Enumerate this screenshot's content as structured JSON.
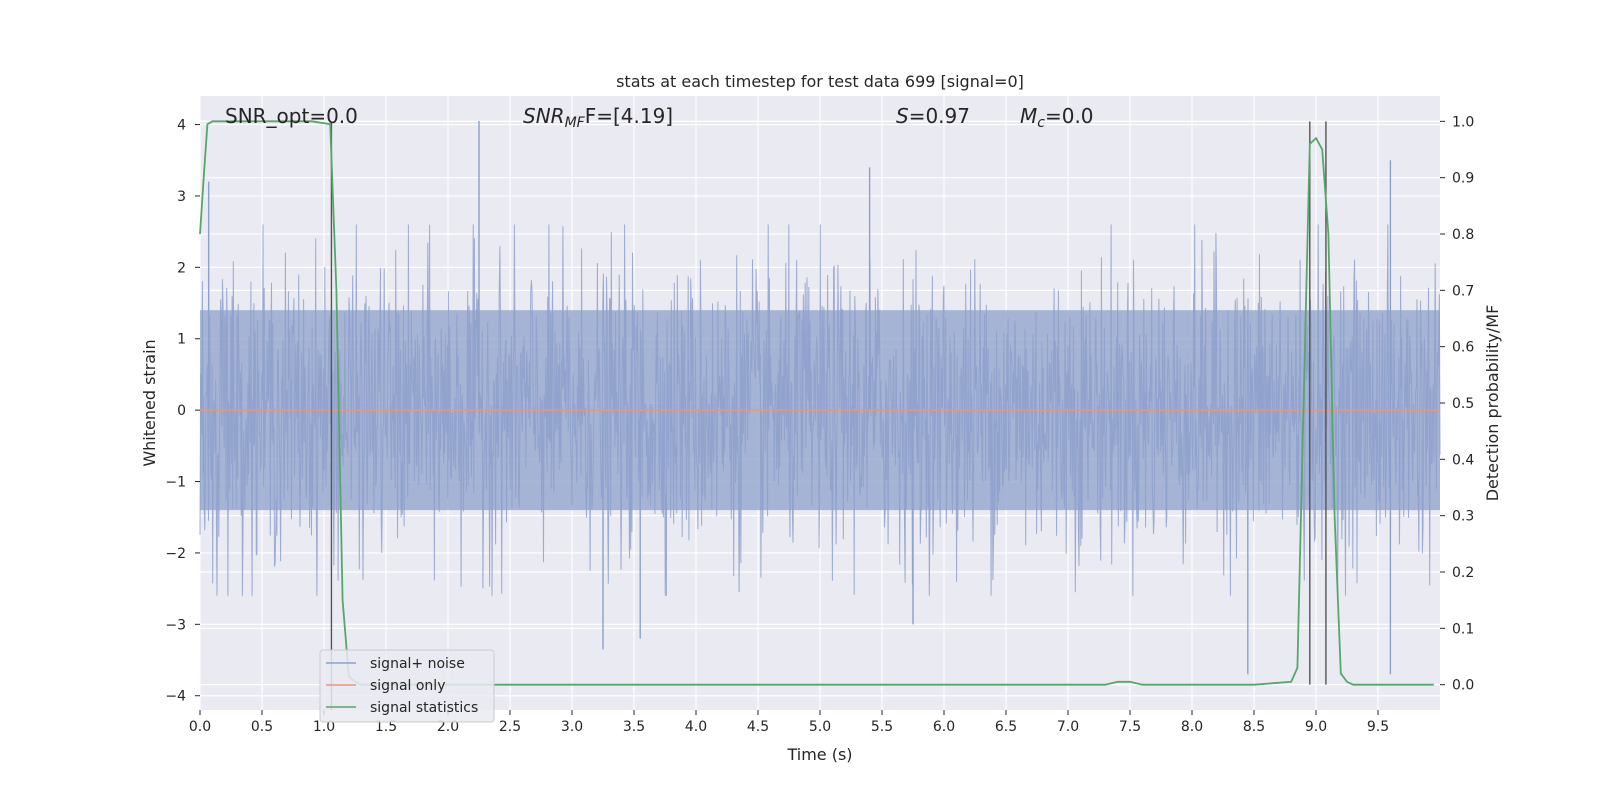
{
  "chart_data": {
    "type": "line",
    "title": "stats at each timestep for test data 699 [signal=0]",
    "xlabel": "Time (s)",
    "ylabel": "Whitened strain",
    "ylabel_right": "Detection probability/MF",
    "xlim": [
      0.0,
      10.0
    ],
    "ylim": [
      -4.2,
      4.4
    ],
    "ylim_right": [
      -0.045,
      1.045
    ],
    "x_ticks": [
      "0.0",
      "0.5",
      "1.0",
      "1.5",
      "2.0",
      "2.5",
      "3.0",
      "3.5",
      "4.0",
      "4.5",
      "5.0",
      "5.5",
      "6.0",
      "6.5",
      "7.0",
      "7.5",
      "8.0",
      "8.5",
      "9.0",
      "9.5"
    ],
    "y_ticks": [
      "4",
      "3",
      "2",
      "1",
      "0",
      "−1",
      "−2",
      "−3",
      "−4"
    ],
    "y_ticks_right": [
      "1.0",
      "0.9",
      "0.8",
      "0.7",
      "0.6",
      "0.5",
      "0.4",
      "0.3",
      "0.2",
      "0.1",
      "0.0"
    ],
    "grid": true,
    "legend_position": "lower-left",
    "annotations": {
      "snr_opt": "SNR_opt=0.0",
      "snr_mf_base": "SNR",
      "snr_mf_sub": "MF",
      "snr_mf_tail": "F=[4.19]",
      "s_sym": "S",
      "s_tail": "=0.97",
      "mc_base": "M",
      "mc_sub": "c",
      "mc_tail": "=0.0"
    },
    "series": [
      {
        "name": "signal+ noise",
        "color": "#8da0cb",
        "axis": "left",
        "description": "whitened noise, ~unit variance, bounded roughly by ±1.4 envelope with spikes to ±3.5",
        "envelope_upper": 1.4,
        "envelope_lower": -1.4,
        "spikes": [
          {
            "x": 0.07,
            "y": 3.2
          },
          {
            "x": 2.25,
            "y": 4.05
          },
          {
            "x": 5.4,
            "y": 3.4
          },
          {
            "x": 9.6,
            "y": 3.5
          },
          {
            "x": 8.45,
            "y": -3.7
          },
          {
            "x": 9.6,
            "y": -3.7
          },
          {
            "x": 3.25,
            "y": -3.35
          },
          {
            "x": 3.55,
            "y": -3.2
          },
          {
            "x": 5.75,
            "y": -3.0
          }
        ]
      },
      {
        "name": "signal only",
        "color": "#e8967a",
        "axis": "left",
        "x": [
          0.0,
          10.0
        ],
        "y": [
          0.0,
          0.0
        ]
      },
      {
        "name": "signal statistics",
        "color": "#55a868",
        "axis": "right",
        "x": [
          0.0,
          0.03,
          0.06,
          0.1,
          0.15,
          0.3,
          0.6,
          0.9,
          1.05,
          1.1,
          1.15,
          1.2,
          1.25,
          1.3,
          1.5,
          2.0,
          3.0,
          4.0,
          5.0,
          6.0,
          7.0,
          7.3,
          7.4,
          7.5,
          7.6,
          8.0,
          8.5,
          8.8,
          8.85,
          8.9,
          8.95,
          9.0,
          9.05,
          9.1,
          9.15,
          9.2,
          9.25,
          9.3,
          9.4,
          9.5,
          9.95
        ],
        "y": [
          0.8,
          0.9,
          0.995,
          1.0,
          1.0,
          1.0,
          1.0,
          1.0,
          0.995,
          0.7,
          0.15,
          0.015,
          0.005,
          0.0,
          0.0,
          0.0,
          0.0,
          0.0,
          0.0,
          0.0,
          0.0,
          0.0,
          0.005,
          0.005,
          0.0,
          0.0,
          0.0,
          0.005,
          0.03,
          0.5,
          0.96,
          0.97,
          0.95,
          0.8,
          0.3,
          0.02,
          0.005,
          0.0,
          0.0,
          0.0,
          0.0
        ]
      }
    ],
    "vlines": [
      {
        "x": 1.06,
        "y_from": -0.045,
        "y_to": 1.0,
        "axis": "right",
        "color": "#555555"
      },
      {
        "x": 8.95,
        "y_from": 0.0,
        "y_to": 1.0,
        "axis": "right",
        "color": "#555555"
      },
      {
        "x": 9.08,
        "y_from": 0.0,
        "y_to": 1.0,
        "axis": "right",
        "color": "#555555"
      }
    ]
  }
}
